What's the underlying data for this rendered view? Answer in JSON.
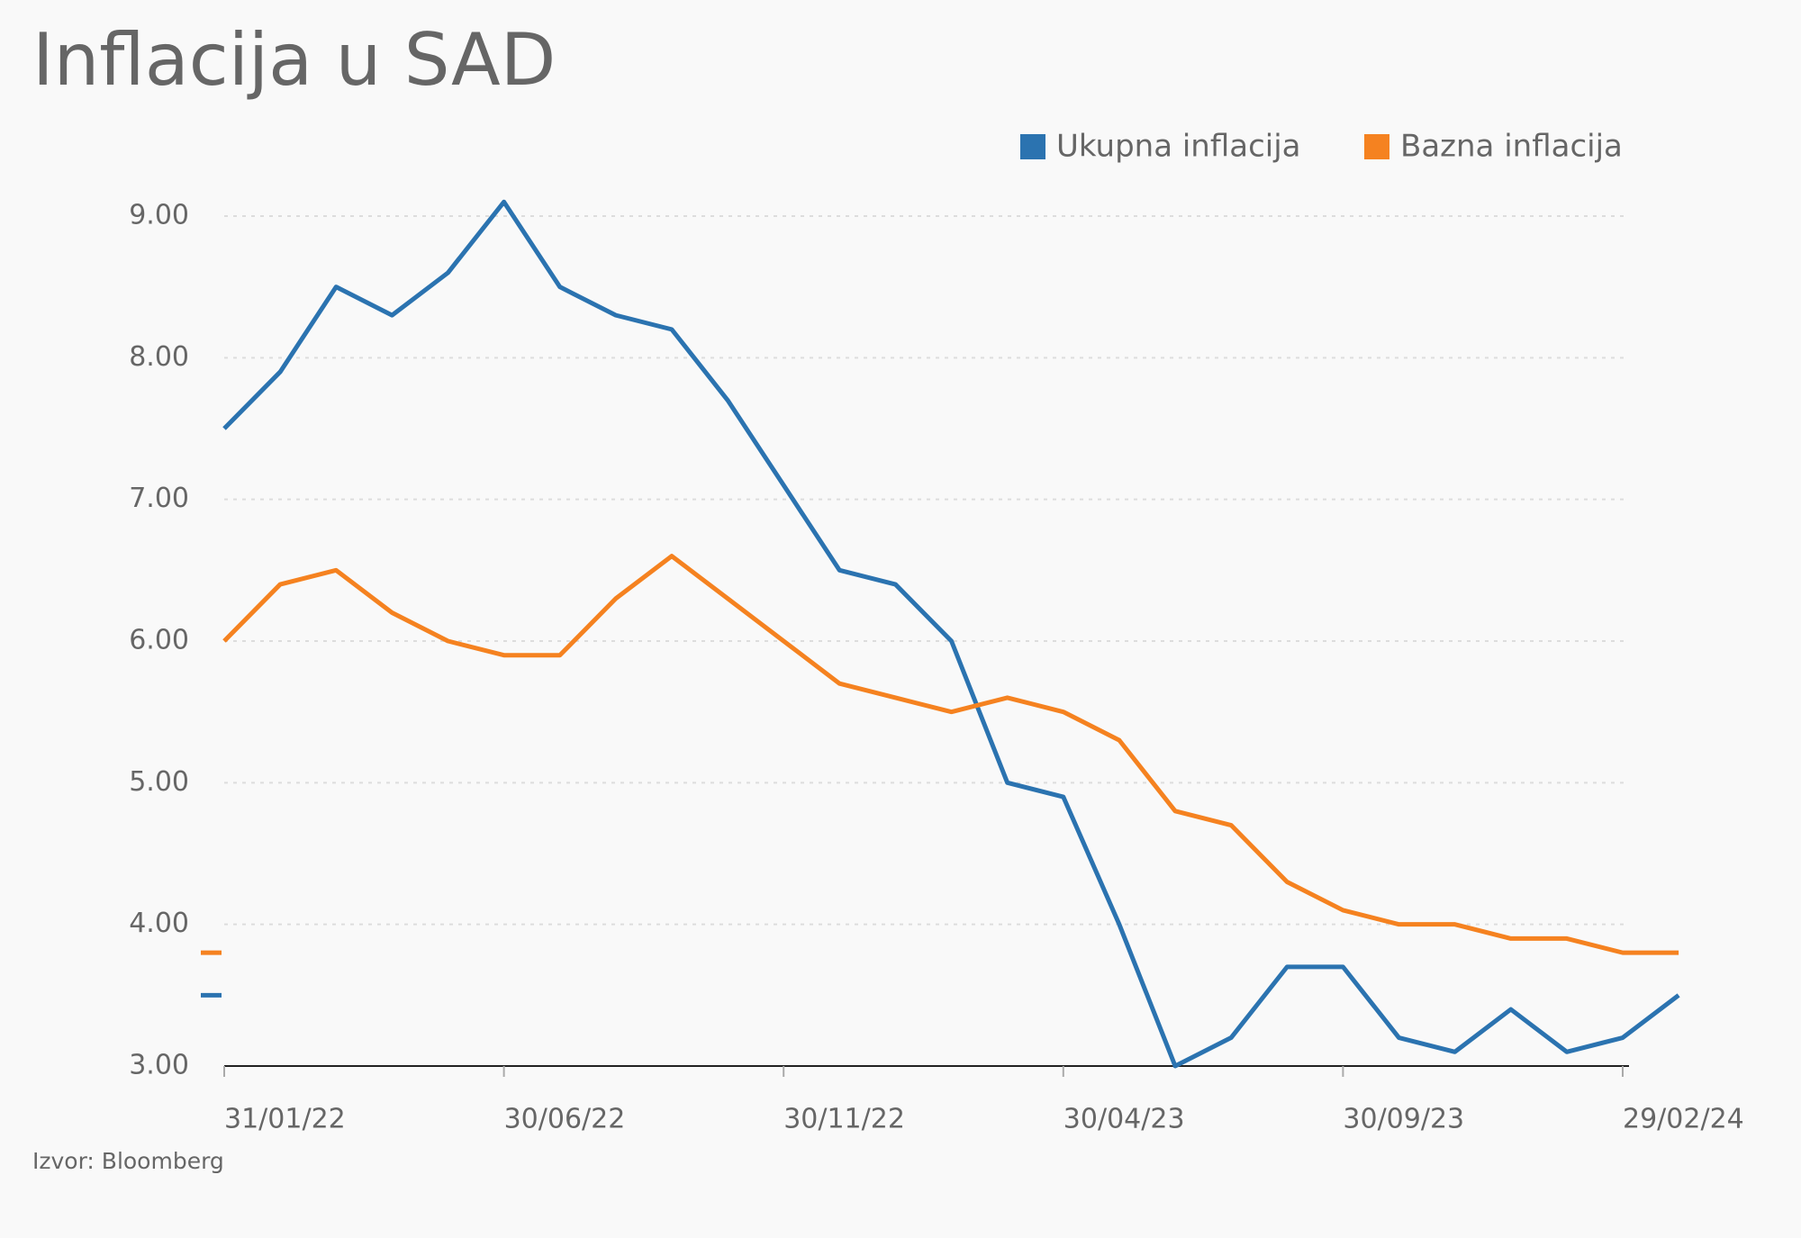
{
  "chart_data": {
    "type": "line",
    "title": "Inflacija u SAD",
    "source": "Izvor: Bloomberg",
    "categories": [
      "31/01/22",
      null,
      null,
      null,
      null,
      "30/06/22",
      null,
      null,
      null,
      null,
      "30/11/22",
      null,
      null,
      null,
      null,
      "30/04/23",
      null,
      null,
      null,
      null,
      "30/09/23",
      null,
      null,
      null,
      null,
      "29/02/24",
      null
    ],
    "series": [
      {
        "name": "Ukupna inflacija",
        "color": "#2b73b0",
        "values": [
          7.5,
          7.9,
          8.5,
          8.3,
          8.6,
          9.1,
          8.5,
          8.3,
          8.2,
          7.7,
          7.1,
          6.5,
          6.4,
          6.0,
          5.0,
          4.9,
          4.0,
          3.0,
          3.2,
          3.7,
          3.7,
          3.2,
          3.1,
          3.4,
          3.1,
          3.2,
          3.5
        ]
      },
      {
        "name": "Bazna inflacija",
        "color": "#f58220",
        "values": [
          6.0,
          6.4,
          6.5,
          6.2,
          6.0,
          5.9,
          5.9,
          6.3,
          6.6,
          6.3,
          6.0,
          5.7,
          5.6,
          5.5,
          5.6,
          5.5,
          5.3,
          4.8,
          4.7,
          4.3,
          4.1,
          4.0,
          4.0,
          3.9,
          3.9,
          3.8,
          3.8
        ]
      }
    ],
    "ylim": [
      3,
      9
    ],
    "yticks": [
      {
        "value": 3,
        "label": "3.00"
      },
      {
        "value": 4,
        "label": "4.00"
      },
      {
        "value": 5,
        "label": "5.00"
      },
      {
        "value": 6,
        "label": "6.00"
      },
      {
        "value": 7,
        "label": "7.00"
      },
      {
        "value": 8,
        "label": "8.00"
      },
      {
        "value": 9,
        "label": "9.00"
      }
    ],
    "grid": true,
    "legend": "top-right"
  }
}
